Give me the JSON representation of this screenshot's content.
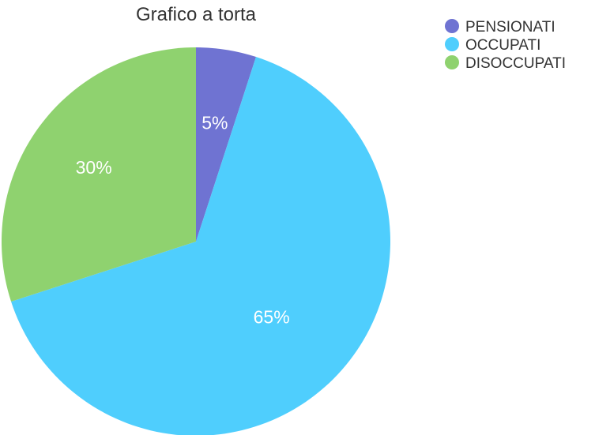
{
  "chart_data": {
    "type": "pie",
    "title": "Grafico a torta",
    "categories": [
      "PENSIONATI",
      "OCCUPATI",
      "DISOCCUPATI"
    ],
    "values": [
      5,
      65,
      30
    ],
    "labels": [
      "5%",
      "65%",
      "30%"
    ],
    "colors": [
      "#6f73d2",
      "#4fcefd",
      "#8fd26f"
    ],
    "legend": "top-right",
    "start_angle": "top, clockwise"
  }
}
